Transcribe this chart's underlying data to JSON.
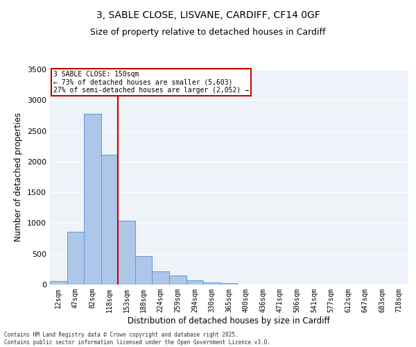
{
  "title_line1": "3, SABLE CLOSE, LISVANE, CARDIFF, CF14 0GF",
  "title_line2": "Size of property relative to detached houses in Cardiff",
  "xlabel": "Distribution of detached houses by size in Cardiff",
  "ylabel": "Number of detached properties",
  "categories": [
    "12sqm",
    "47sqm",
    "82sqm",
    "118sqm",
    "153sqm",
    "188sqm",
    "224sqm",
    "259sqm",
    "294sqm",
    "330sqm",
    "365sqm",
    "400sqm",
    "436sqm",
    "471sqm",
    "506sqm",
    "541sqm",
    "577sqm",
    "612sqm",
    "647sqm",
    "683sqm",
    "718sqm"
  ],
  "values": [
    60,
    860,
    2780,
    2110,
    1040,
    460,
    210,
    150,
    65,
    35,
    20,
    0,
    0,
    0,
    0,
    0,
    0,
    0,
    0,
    0,
    0
  ],
  "bar_color": "#aec6e8",
  "bar_edge_color": "#5b9bd5",
  "vline_x_index": 4,
  "vline_color": "#cc0000",
  "annotation_line1": "3 SABLE CLOSE: 150sqm",
  "annotation_line2": "← 73% of detached houses are smaller (5,603)",
  "annotation_line3": "27% of semi-detached houses are larger (2,052) →",
  "annotation_box_color": "#cc0000",
  "ylim": [
    0,
    3500
  ],
  "yticks": [
    0,
    500,
    1000,
    1500,
    2000,
    2500,
    3000,
    3500
  ],
  "background_color": "#eef2f9",
  "footnote_line1": "Contains HM Land Registry data © Crown copyright and database right 2025.",
  "footnote_line2": "Contains public sector information licensed under the Open Government Licence v3.0."
}
